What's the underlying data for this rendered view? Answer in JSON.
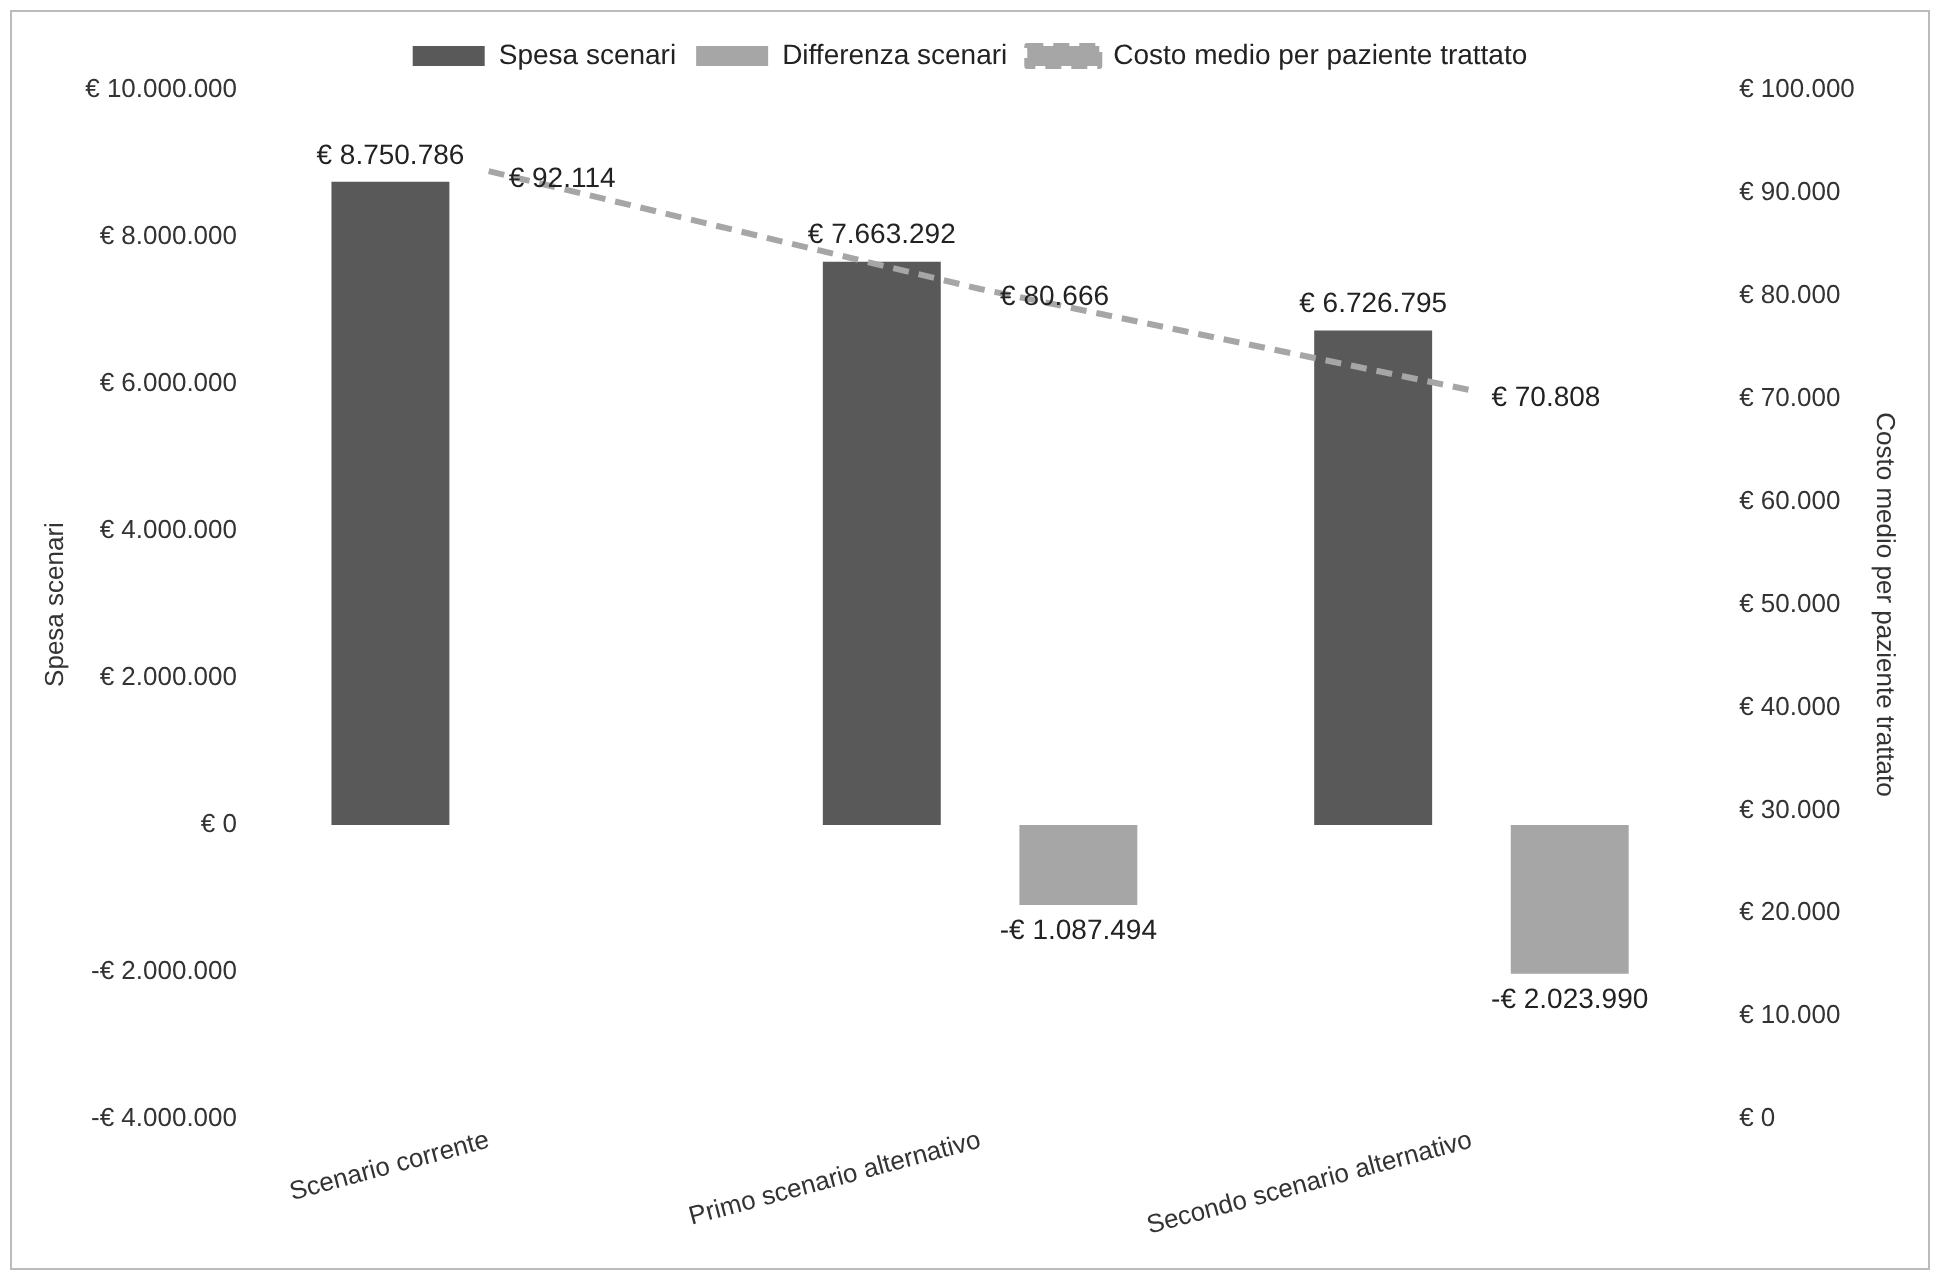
{
  "chart_data": {
    "type": "bar",
    "ylabel": "Spesa scenari",
    "y2label": "Costo medio per paziente trattato",
    "categories": [
      "Scenario corrente",
      "Primo scenario alternativo",
      "Secondo scenario alternativo"
    ],
    "series": [
      {
        "name": "Spesa scenari",
        "color": "#595959",
        "values": [
          8750786,
          7663292,
          6726795
        ],
        "value_labels": [
          "€ 8.750.786",
          "€ 7.663.292",
          "€ 6.726.795"
        ]
      },
      {
        "name": "Differenza scenari",
        "color": "#a6a6a6",
        "values": [
          null,
          -1087494,
          -2023990
        ],
        "value_labels": [
          null,
          "-€ 1.087.494",
          "-€ 2.023.990"
        ]
      },
      {
        "name": "Costo medio per paziente trattato",
        "type": "line",
        "axis": "y2",
        "color": "#a6a6a6",
        "line_style": "dashed",
        "marker": "none",
        "values": [
          92114,
          80666,
          70808
        ],
        "value_labels": [
          "€ 92.114",
          "€ 80.666",
          "€ 70.808"
        ]
      }
    ],
    "ylim": [
      -4000000,
      10000000
    ],
    "yticks": [
      {
        "value": -4000000,
        "label": "-€ 4.000.000"
      },
      {
        "value": -2000000,
        "label": "-€ 2.000.000"
      },
      {
        "value": 0,
        "label": "€ 0"
      },
      {
        "value": 2000000,
        "label": "€ 2.000.000"
      },
      {
        "value": 4000000,
        "label": "€ 4.000.000"
      },
      {
        "value": 6000000,
        "label": "€ 6.000.000"
      },
      {
        "value": 8000000,
        "label": "€ 8.000.000"
      },
      {
        "value": 10000000,
        "label": "€ 10.000.000"
      }
    ],
    "y2lim": [
      0,
      100000
    ],
    "y2ticks": [
      {
        "value": 0,
        "label": "€ 0"
      },
      {
        "value": 10000,
        "label": "€ 10.000"
      },
      {
        "value": 20000,
        "label": "€ 20.000"
      },
      {
        "value": 30000,
        "label": "€ 30.000"
      },
      {
        "value": 40000,
        "label": "€ 40.000"
      },
      {
        "value": 50000,
        "label": "€ 50.000"
      },
      {
        "value": 60000,
        "label": "€ 60.000"
      },
      {
        "value": 70000,
        "label": "€ 70.000"
      },
      {
        "value": 80000,
        "label": "€ 80.000"
      },
      {
        "value": 90000,
        "label": "€ 90.000"
      },
      {
        "value": 100000,
        "label": "€ 100.000"
      }
    ],
    "grid": false,
    "legend": "top"
  }
}
